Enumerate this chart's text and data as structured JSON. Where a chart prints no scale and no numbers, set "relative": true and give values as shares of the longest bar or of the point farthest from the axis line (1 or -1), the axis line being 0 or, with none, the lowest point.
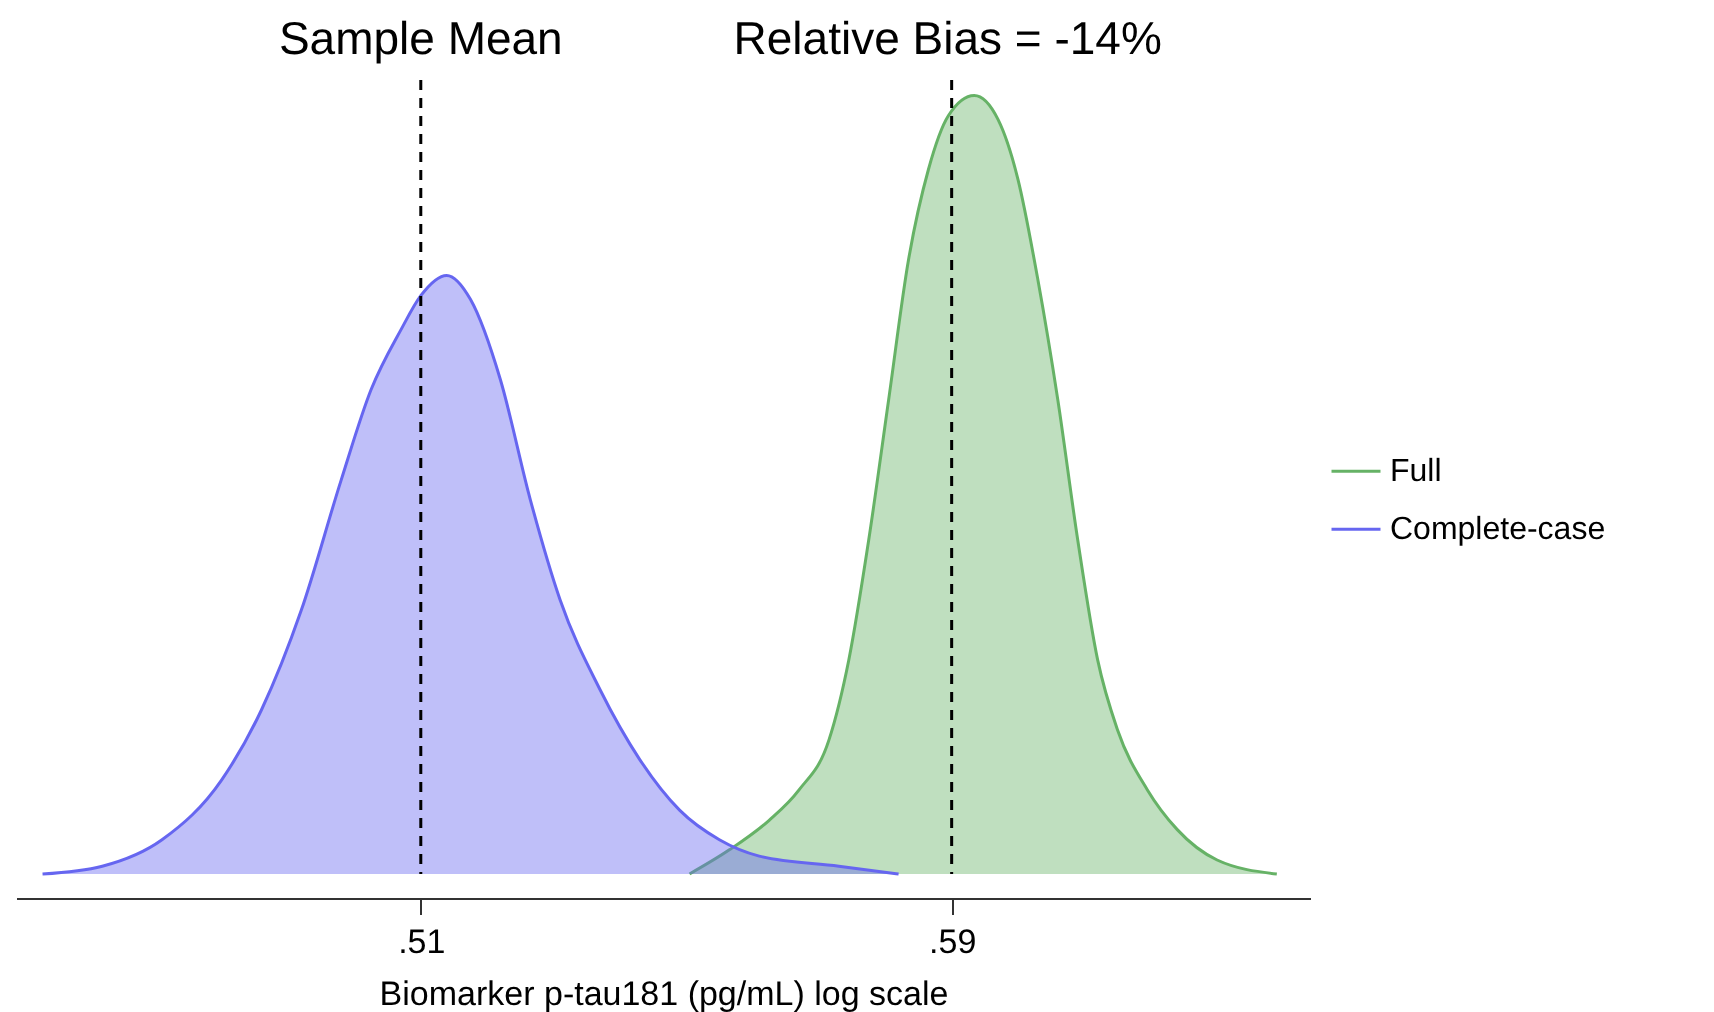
{
  "chart_data": {
    "type": "area",
    "relative": true,
    "xlabel": "Biomarker p-tau181 (pg/mL) log scale",
    "xlim": [
      0.449,
      0.644
    ],
    "xticks": [
      {
        "value": 0.51,
        "label": ".51"
      },
      {
        "value": 0.59,
        "label": ".59"
      }
    ],
    "legend": "right",
    "grid": false,
    "series": [
      {
        "name": "Full",
        "color": "#66b266",
        "x": [
          0.5505,
          0.5565,
          0.5625,
          0.567,
          0.5715,
          0.5745,
          0.5775,
          0.5805,
          0.5835,
          0.5865,
          0.5895,
          0.5934,
          0.597,
          0.6,
          0.603,
          0.606,
          0.609,
          0.612,
          0.615,
          0.6195,
          0.624,
          0.63,
          0.639
        ],
        "values": [
          0,
          0.031,
          0.069,
          0.108,
          0.172,
          0.275,
          0.429,
          0.609,
          0.789,
          0.905,
          0.974,
          1,
          0.969,
          0.892,
          0.763,
          0.609,
          0.429,
          0.275,
          0.185,
          0.108,
          0.057,
          0.018,
          0
        ]
      },
      {
        "name": "Complete-case",
        "color": "#6666f0",
        "x": [
          0.453,
          0.462,
          0.471,
          0.48,
          0.486,
          0.492,
          0.498,
          0.5025,
          0.507,
          0.51,
          0.5139,
          0.5175,
          0.522,
          0.5265,
          0.531,
          0.537,
          0.543,
          0.549,
          0.555,
          0.561,
          0.573,
          0.582
        ],
        "values": [
          0,
          0.01,
          0.044,
          0.121,
          0.211,
          0.339,
          0.506,
          0.622,
          0.699,
          0.743,
          0.769,
          0.738,
          0.635,
          0.481,
          0.352,
          0.237,
          0.147,
          0.082,
          0.044,
          0.023,
          0.01,
          0
        ]
      }
    ],
    "ref_lines": [
      {
        "axis": "x",
        "value": 0.51,
        "label": "Sample Mean",
        "color": "#000000",
        "line_style": "dashed"
      },
      {
        "axis": "x",
        "value": 0.59,
        "color": "#000000",
        "line_style": "dashed"
      }
    ],
    "annotations": [
      "Relative Bias = -14%"
    ]
  }
}
